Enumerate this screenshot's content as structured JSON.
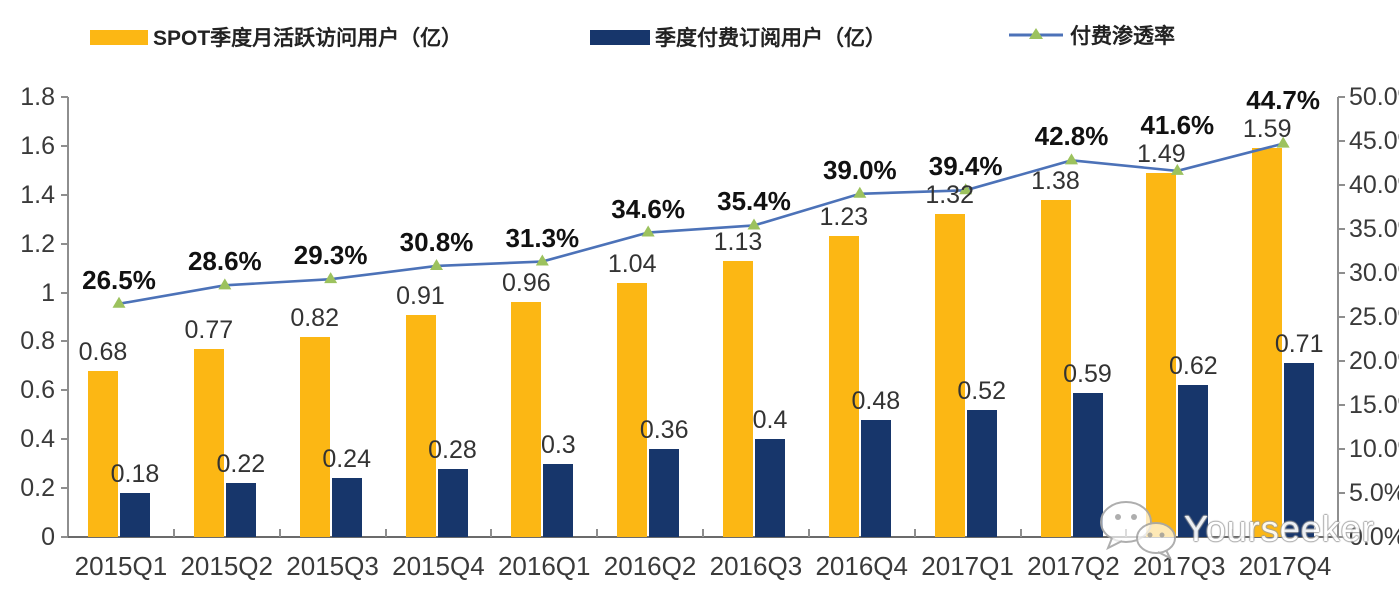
{
  "watermark": {
    "text": "Yourseeker",
    "icon": "wechat-icon"
  },
  "colors": {
    "mau_bar": "#FCB714",
    "sub_bar": "#17366B",
    "line": "#4C72B8",
    "marker": "#9CC25E",
    "axis": "#8E8E8E"
  },
  "chart_data": {
    "type": "bar+line combo",
    "title": "",
    "categories": [
      "2015Q1",
      "2015Q2",
      "2015Q3",
      "2015Q4",
      "2016Q1",
      "2016Q2",
      "2016Q3",
      "2016Q4",
      "2017Q1",
      "2017Q2",
      "2017Q3",
      "2017Q4"
    ],
    "series": [
      {
        "name": "SPOT季度月活跃访问用户（亿）",
        "type": "bar",
        "axis": "left",
        "color": "#FCB714",
        "values": [
          0.68,
          0.77,
          0.82,
          0.91,
          0.96,
          1.04,
          1.13,
          1.23,
          1.32,
          1.38,
          1.49,
          1.59
        ],
        "labels": [
          "0.68",
          "0.77",
          "0.82",
          "0.91",
          "0.96",
          "1.04",
          "1.13",
          "1.23",
          "1.32",
          "1.38",
          "1.49",
          "1.59"
        ]
      },
      {
        "name": "季度付费订阅用户（亿）",
        "type": "bar",
        "axis": "left",
        "color": "#17366B",
        "values": [
          0.18,
          0.22,
          0.24,
          0.28,
          0.3,
          0.36,
          0.4,
          0.48,
          0.52,
          0.59,
          0.62,
          0.71
        ],
        "labels": [
          "0.18",
          "0.22",
          "0.24",
          "0.28",
          "0.3",
          "0.36",
          "0.4",
          "0.48",
          "0.52",
          "0.59",
          "0.62",
          "0.71"
        ]
      },
      {
        "name": "付费渗透率",
        "type": "line",
        "axis": "right",
        "color": "#4C72B8",
        "marker": "triangle-up",
        "marker_color": "#9CC25E",
        "values": [
          26.5,
          28.6,
          29.3,
          30.8,
          31.3,
          34.6,
          35.4,
          39.0,
          39.4,
          42.8,
          41.6,
          44.7
        ],
        "labels": [
          "26.5%",
          "28.6%",
          "29.3%",
          "30.8%",
          "31.3%",
          "34.6%",
          "35.4%",
          "39.0%",
          "39.4%",
          "42.8%",
          "41.6%",
          "44.7%"
        ]
      }
    ],
    "left_axis": {
      "min": 0,
      "max": 1.8,
      "ticks": [
        "1.8",
        "1.6",
        "1.4",
        "1.2",
        "1",
        "0.8",
        "0.6",
        "0.4",
        "0.2",
        "0"
      ]
    },
    "right_axis": {
      "min": 0,
      "max": 50,
      "ticks": [
        "50.0%",
        "45.0%",
        "40.0%",
        "35.0%",
        "30.0%",
        "25.0%",
        "20.0%",
        "15.0%",
        "10.0%",
        "5.0%",
        "0.0%"
      ]
    },
    "grid": false,
    "legend_position": "top"
  }
}
